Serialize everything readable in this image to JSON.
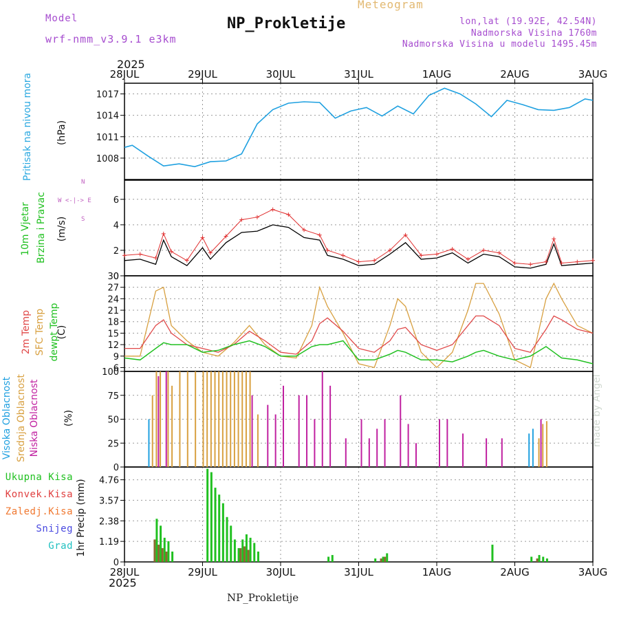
{
  "header": {
    "model_label": "Model",
    "model_name": "wrf-nmm_v3.9.1 e3km",
    "title": "NP_Prokletije",
    "subtitle": "Meteogram",
    "lonlat": "lon,lat (19.92E, 42.54N)",
    "altitude": "Nadmorska Visina 1760m",
    "model_altitude": "Nadmorska Visina u modelu 1495.45m",
    "year": "2025",
    "footer": "NP_Prokletije",
    "watermark": "made by Angel"
  },
  "axis_dates": [
    "28JUL",
    "29JUL",
    "30JUL",
    "31JUL",
    "1AUG",
    "2AUG",
    "3AUG"
  ],
  "panel_labels": {
    "pressure": {
      "name": "Pritisak na nivou mora",
      "unit": "(hPa)"
    },
    "wind": {
      "name1": "10m Vjetar",
      "name2": "Brzina i Pravac",
      "unit": "(m/s)",
      "compass": "W <-|-> E",
      "compass_n": "N",
      "compass_s": "S"
    },
    "temp": {
      "name1": "2m Temp",
      "name2": "SFC Temp",
      "name3": "dewpt Temp",
      "unit": "(C)"
    },
    "cloud": {
      "name1": "Visoka Oblacnost",
      "name2": "Srednja Oblacnost",
      "name3": "Niska Oblacnost",
      "unit": "(%)"
    },
    "precip": {
      "unit": "1hr Precip (mm)",
      "legend": [
        "Ukupna Kisa",
        "Konvek.Kisa",
        "Zaledj.Kisa",
        "Snijeg",
        "Grad"
      ]
    }
  },
  "colors": {
    "pressure": "#1ea0e0",
    "wind_speed": "#000000",
    "gust": "#e03030",
    "t2m": "#e04848",
    "tsfc": "#d8a040",
    "tdew": "#20c020",
    "high_cloud": "#20a0e0",
    "mid_cloud": "#d8a040",
    "low_cloud": "#c020a0",
    "total_rain": "#20c020",
    "conv_rain": "#e04040",
    "frz_rain": "#f07830",
    "snow": "#4848e0",
    "hail": "#20c0c0"
  },
  "chart_data": [
    {
      "type": "line",
      "name": "pressure",
      "ylim": [
        1005,
        1018.5
      ],
      "yticks": [
        1008,
        1011,
        1014,
        1017
      ],
      "x_days": [
        0,
        0.1,
        0.3,
        0.5,
        0.7,
        0.9,
        1.1,
        1.3,
        1.5,
        1.7,
        1.9,
        2.1,
        2.3,
        2.5,
        2.7,
        2.9,
        3.1,
        3.3,
        3.5,
        3.7,
        3.9,
        4.1,
        4.3,
        4.5,
        4.7,
        4.9,
        5.1,
        5.3,
        5.5,
        5.7,
        5.9,
        6.0
      ],
      "values": [
        1009.5,
        1009.8,
        1008.3,
        1006.9,
        1007.2,
        1006.8,
        1007.5,
        1007.6,
        1008.6,
        1012.8,
        1014.8,
        1015.7,
        1015.9,
        1015.8,
        1013.6,
        1014.6,
        1015.1,
        1013.9,
        1015.3,
        1014.2,
        1016.8,
        1017.8,
        1017.0,
        1015.6,
        1013.8,
        1016.1,
        1015.5,
        1014.8,
        1014.7,
        1015.1,
        1016.3,
        1016.1
      ]
    },
    {
      "type": "line",
      "name": "wind",
      "ylim": [
        0,
        7.5
      ],
      "yticks": [
        0,
        2,
        4,
        6
      ],
      "x_days": [
        0,
        0.2,
        0.4,
        0.5,
        0.6,
        0.8,
        1.0,
        1.1,
        1.3,
        1.5,
        1.7,
        1.9,
        2.1,
        2.3,
        2.5,
        2.6,
        2.8,
        3.0,
        3.2,
        3.4,
        3.6,
        3.8,
        4.0,
        4.2,
        4.4,
        4.6,
        4.8,
        5.0,
        5.2,
        5.4,
        5.5,
        5.6,
        5.8,
        6.0
      ],
      "speed": [
        1.2,
        1.3,
        0.9,
        2.8,
        1.5,
        0.8,
        2.2,
        1.3,
        2.6,
        3.4,
        3.5,
        4.0,
        3.8,
        3.0,
        2.8,
        1.6,
        1.3,
        0.8,
        0.9,
        1.7,
        2.6,
        1.3,
        1.4,
        1.8,
        1.0,
        1.7,
        1.5,
        0.7,
        0.6,
        0.9,
        2.5,
        0.8,
        0.9,
        1.0
      ],
      "gust": [
        1.6,
        1.7,
        1.4,
        3.3,
        1.9,
        1.2,
        3.0,
        1.8,
        3.1,
        4.4,
        4.6,
        5.2,
        4.8,
        3.6,
        3.2,
        2.0,
        1.6,
        1.1,
        1.2,
        2.0,
        3.2,
        1.6,
        1.7,
        2.1,
        1.3,
        2.0,
        1.8,
        1.0,
        0.9,
        1.1,
        2.9,
        1.0,
        1.1,
        1.2
      ]
    },
    {
      "type": "line",
      "name": "temperature",
      "ylim": [
        5,
        30
      ],
      "yticks": [
        6,
        9,
        12,
        15,
        18,
        21,
        24,
        27,
        30
      ],
      "x_days": [
        0,
        0.2,
        0.4,
        0.5,
        0.6,
        0.8,
        1.0,
        1.2,
        1.4,
        1.6,
        1.8,
        2.0,
        2.2,
        2.4,
        2.5,
        2.6,
        2.8,
        3.0,
        3.2,
        3.4,
        3.5,
        3.6,
        3.8,
        4.0,
        4.2,
        4.4,
        4.5,
        4.6,
        4.8,
        5.0,
        5.2,
        5.4,
        5.5,
        5.6,
        5.8,
        6.0
      ],
      "t2m": [
        11,
        11,
        17,
        18.5,
        15,
        12,
        11,
        10,
        12,
        15.5,
        13,
        10,
        9.5,
        13,
        17.5,
        19,
        15.5,
        11,
        10,
        13,
        16,
        16.5,
        12,
        10.5,
        12,
        17,
        19.5,
        19.5,
        17,
        11,
        10,
        16,
        19.5,
        18.5,
        16,
        15
      ],
      "tsfc": [
        9,
        9,
        26,
        27,
        17,
        13,
        10,
        9,
        12.5,
        17,
        12,
        9,
        8.5,
        17,
        27,
        22,
        15,
        7,
        6,
        17,
        24,
        22,
        10,
        6,
        10,
        21,
        28,
        28,
        20,
        8,
        6,
        24,
        28,
        24,
        17,
        15
      ],
      "tdew": [
        8.5,
        8,
        11,
        12.5,
        12,
        12,
        10,
        10.5,
        12,
        13,
        11.5,
        9,
        9,
        11.5,
        12,
        12,
        13,
        8,
        8,
        9.5,
        10.5,
        10,
        8,
        8,
        7.5,
        9,
        10,
        10.5,
        9,
        8,
        9,
        11.5,
        10,
        8.5,
        8,
        7
      ]
    },
    {
      "type": "bar",
      "name": "cloud cover",
      "ylim": [
        0,
        100
      ],
      "yticks": [
        0,
        25,
        50,
        75,
        100
      ],
      "mid_cloud_days": [
        0.35,
        0.4,
        0.45,
        0.55,
        0.6,
        0.7,
        0.8,
        0.9,
        1.0,
        1.05,
        1.1,
        1.15,
        1.2,
        1.25,
        1.3,
        1.35,
        1.4,
        1.45,
        1.5,
        1.55,
        1.6,
        1.7,
        5.3,
        5.35,
        5.4
      ],
      "mid_cloud_values": [
        75,
        100,
        100,
        100,
        85,
        100,
        100,
        100,
        100,
        100,
        100,
        100,
        100,
        100,
        100,
        100,
        100,
        100,
        100,
        100,
        100,
        55,
        30,
        45,
        48
      ],
      "low_cloud_days": [
        0.4,
        0.5,
        1.6,
        1.8,
        1.9,
        2.0,
        2.2,
        2.3,
        2.4,
        2.5,
        2.6,
        2.8,
        3.0,
        3.1,
        3.2,
        3.3,
        3.5,
        3.6,
        3.7,
        4.0,
        4.1,
        4.3,
        4.6,
        4.8,
        5.3
      ],
      "low_cloud_values": [
        95,
        100,
        75,
        65,
        55,
        85,
        75,
        75,
        50,
        100,
        85,
        30,
        50,
        30,
        40,
        50,
        75,
        45,
        25,
        50,
        50,
        35,
        30,
        30,
        50
      ],
      "high_cloud_days": [
        0.33,
        5.2,
        5.25
      ],
      "high_cloud_values": [
        50,
        35,
        40
      ]
    },
    {
      "type": "bar",
      "name": "1hr precipitation",
      "ylim": [
        0,
        5.5
      ],
      "yticks": [
        0,
        1.19,
        2.38,
        3.57,
        4.76
      ],
      "total_days": [
        0.4,
        0.45,
        0.5,
        0.55,
        0.6,
        1.05,
        1.1,
        1.15,
        1.2,
        1.25,
        1.3,
        1.35,
        1.4,
        1.45,
        1.5,
        1.55,
        1.6,
        1.65,
        1.7,
        2.6,
        2.65,
        3.2,
        3.3,
        3.35,
        4.7,
        5.2,
        5.3,
        5.35,
        5.4
      ],
      "total_values": [
        2.5,
        2.1,
        1.4,
        1.2,
        0.6,
        5.4,
        5.2,
        4.3,
        3.9,
        3.4,
        2.6,
        2.1,
        1.3,
        0.8,
        1.3,
        1.6,
        1.4,
        1.1,
        0.6,
        0.3,
        0.4,
        0.2,
        0.3,
        0.5,
        1.0,
        0.3,
        0.4,
        0.3,
        0.2
      ],
      "conv_days": [
        0.4,
        0.45,
        0.5,
        0.55,
        1.5,
        1.55,
        1.6,
        3.3,
        3.35,
        5.3
      ],
      "conv_values": [
        1.3,
        1.0,
        0.8,
        0.6,
        0.8,
        0.9,
        0.7,
        0.2,
        0.3,
        0.2
      ]
    }
  ]
}
